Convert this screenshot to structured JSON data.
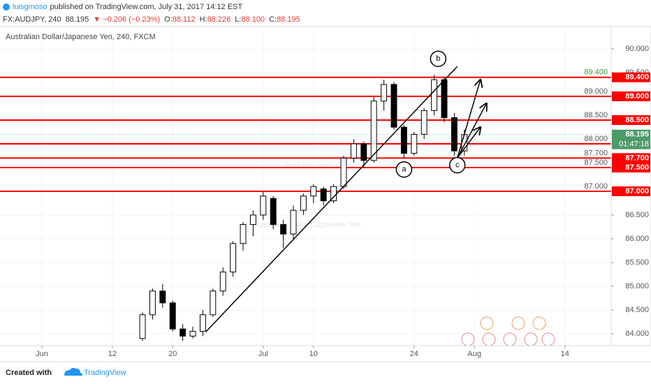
{
  "header": {
    "author": "luisgmoso",
    "published": "published on TradingView.com, July 31, 2017 14:12 EST",
    "quote": {
      "symbol": "FX:AUDJPY, 240",
      "last": "88.195",
      "change": "▼ −0.206 (−0.23%)",
      "ohlc": [
        [
          "O:",
          "88.112"
        ],
        [
          "H:",
          "88.226"
        ],
        [
          "L:",
          "88.100"
        ],
        [
          "C:",
          "88.195"
        ]
      ]
    }
  },
  "chart_data": {
    "type": "candlestick",
    "title": "Australian Dollar/Japanese Yen, 240, FXCM",
    "watermark": [
      "AUDJPY, 240",
      "Australian Dollar/Japanese Yen"
    ],
    "x": [
      10,
      11,
      12,
      13,
      14,
      15,
      16,
      17,
      18,
      19,
      20,
      21,
      22,
      23,
      24,
      25,
      26,
      27,
      28,
      29,
      30,
      31,
      32,
      33,
      34,
      35,
      36,
      37,
      38,
      39,
      40,
      41,
      42
    ],
    "open": [
      83.9,
      84.4,
      84.9,
      84.65,
      84.1,
      83.95,
      84.05,
      84.4,
      84.9,
      85.3,
      85.9,
      86.3,
      86.5,
      86.85,
      86.3,
      86.1,
      86.6,
      86.9,
      87.05,
      86.8,
      87.1,
      87.7,
      88.0,
      87.65,
      88.9,
      89.25,
      88.35,
      87.8,
      88.2,
      88.7,
      89.35,
      88.55,
      87.85
    ],
    "high": [
      84.45,
      84.95,
      85.05,
      84.7,
      84.2,
      84.15,
      84.5,
      84.95,
      85.4,
      85.95,
      86.35,
      86.6,
      87.0,
      86.9,
      86.4,
      86.7,
      86.95,
      87.15,
      87.1,
      87.15,
      87.75,
      88.1,
      88.05,
      89.0,
      89.35,
      89.3,
      88.4,
      88.25,
      88.75,
      89.45,
      89.4,
      88.65,
      88.3
    ],
    "low": [
      83.85,
      84.3,
      84.55,
      84.05,
      83.85,
      83.9,
      83.95,
      84.35,
      84.8,
      85.2,
      85.75,
      86.05,
      86.4,
      86.2,
      85.8,
      86.0,
      86.5,
      86.75,
      86.7,
      86.75,
      87.05,
      87.6,
      87.5,
      87.6,
      88.7,
      88.3,
      87.7,
      87.75,
      88.1,
      88.6,
      88.45,
      87.75,
      87.75
    ],
    "close": [
      84.4,
      84.9,
      84.65,
      84.1,
      83.95,
      84.05,
      84.4,
      84.9,
      85.3,
      85.9,
      86.3,
      86.5,
      86.9,
      86.3,
      86.1,
      86.6,
      86.9,
      87.1,
      86.8,
      87.1,
      87.7,
      88.0,
      87.65,
      88.9,
      89.25,
      88.35,
      87.8,
      88.2,
      88.7,
      89.35,
      88.55,
      87.85,
      88.195
    ],
    "up_color": "#ffffff",
    "down_color": "#000000",
    "wick_color": "#000000",
    "xlim": [
      -4.17,
      56.6
    ],
    "xticks": [
      {
        "value": 0,
        "label": "Jun"
      },
      {
        "value": 7,
        "label": "12"
      },
      {
        "value": 13,
        "label": "20"
      },
      {
        "value": 22,
        "label": "Jul"
      },
      {
        "value": 27,
        "label": "10"
      },
      {
        "value": 37,
        "label": "24"
      },
      {
        "value": 43,
        "label": "Aug"
      },
      {
        "value": 52,
        "label": "14"
      }
    ],
    "ylim": [
      83.75,
      90.47
    ],
    "yticks": [
      {
        "value": 90,
        "label": "90.000"
      },
      {
        "value": 89.5,
        "label": "89.500"
      },
      {
        "value": 89,
        "label": "89.000"
      },
      {
        "value": 88.5,
        "label": "88.500"
      },
      {
        "value": 88,
        "label": "88.000"
      },
      {
        "value": 87.5,
        "label": "87.500"
      },
      {
        "value": 87,
        "label": "87.000"
      },
      {
        "value": 86.5,
        "label": "86.500"
      },
      {
        "value": 86,
        "label": "86.000"
      },
      {
        "value": 85.5,
        "label": "85.500"
      },
      {
        "value": 85,
        "label": "85.000"
      },
      {
        "value": 84.5,
        "label": "84.500"
      },
      {
        "value": 84,
        "label": "84.000"
      }
    ],
    "grid": true,
    "level_color": "#ff0000",
    "levels": [
      {
        "value": 89.4,
        "label": "89.400",
        "text_color": "#3c9a3c"
      },
      {
        "value": 89.0,
        "label": "89.000",
        "text_color": "#555555"
      },
      {
        "value": 88.5,
        "label": "88.500",
        "text_color": "#555555"
      },
      {
        "value": 88.0,
        "label": "88.000",
        "text_color": "#555555"
      },
      {
        "value": 87.7,
        "label": "87.700",
        "text_color": "#555555"
      },
      {
        "value": 87.5,
        "label": "87.500",
        "text_color": "#555555"
      },
      {
        "value": 87.0,
        "label": "87.000",
        "text_color": "#555555"
      }
    ],
    "trendline": {
      "x": [
        16.3,
        41.3
      ],
      "y": [
        84.04,
        89.63
      ]
    },
    "wave_labels": [
      {
        "label": "a",
        "x": 36,
        "y": 87.46
      },
      {
        "label": "b",
        "x": 39.4,
        "y": 89.79
      },
      {
        "label": "c",
        "x": 41.3,
        "y": 87.55
      }
    ],
    "arrows": [
      {
        "x": [
          41.3,
          43.6
        ],
        "y": [
          87.7,
          89.35
        ]
      },
      {
        "x": [
          41.3,
          44.2
        ],
        "y": [
          87.7,
          88.85
        ]
      },
      {
        "x": [
          41.3,
          43.6
        ],
        "y": [
          87.7,
          88.35
        ]
      }
    ],
    "last_price": {
      "value": 88.195,
      "label": "88.195",
      "color": "#4c9a6a"
    },
    "countdown": "01:47:18"
  },
  "footer": {
    "created": "Created with",
    "brand": "TradingView"
  }
}
